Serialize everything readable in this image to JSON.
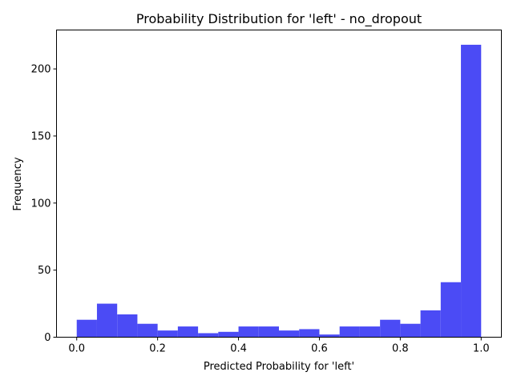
{
  "chart_data": {
    "type": "bar",
    "subtype": "histogram",
    "title": "Probability Distribution for 'left' - no_dropout",
    "xlabel": "Predicted Probability for 'left'",
    "ylabel": "Frequency",
    "xlim": [
      -0.05,
      1.05
    ],
    "ylim": [
      0,
      229
    ],
    "xticks": [
      "0.0",
      "0.2",
      "0.4",
      "0.6",
      "0.8",
      "1.0"
    ],
    "xtick_values": [
      0.0,
      0.2,
      0.4,
      0.6,
      0.8,
      1.0
    ],
    "yticks": [
      "0",
      "50",
      "100",
      "150",
      "200"
    ],
    "ytick_values": [
      0,
      50,
      100,
      150,
      200
    ],
    "bin_edges": [
      0.0,
      0.05,
      0.1,
      0.15,
      0.2,
      0.25,
      0.3,
      0.35,
      0.4,
      0.45,
      0.5,
      0.55,
      0.6,
      0.65,
      0.7,
      0.75,
      0.8,
      0.85,
      0.9,
      0.95,
      1.0
    ],
    "values": [
      13,
      25,
      17,
      10,
      5,
      8,
      3,
      4,
      8,
      8,
      5,
      6,
      2,
      8,
      8,
      13,
      10,
      20,
      41,
      218
    ],
    "color": "#4b4bf5",
    "grid": false,
    "legend": "none"
  }
}
